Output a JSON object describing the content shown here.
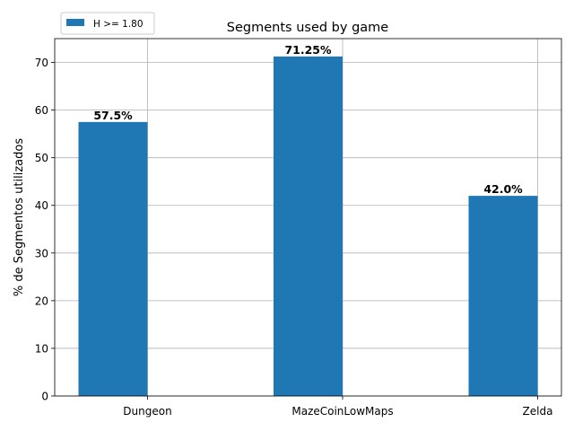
{
  "chart_data": {
    "type": "bar",
    "title": "Segments used by game",
    "xlabel": "",
    "ylabel": "% de Segmentos utilizados",
    "categories": [
      "Dungeon",
      "MazeCoinLowMaps",
      "Zelda"
    ],
    "series": [
      {
        "name": "H >= 1.80",
        "values": [
          57.5,
          71.25,
          42.0
        ],
        "color": "#1f77b4"
      }
    ],
    "data_labels": [
      "57.5%",
      "71.25%",
      "42.0%"
    ],
    "yticks": [
      0,
      10,
      20,
      30,
      40,
      50,
      60,
      70
    ],
    "ylim": [
      0,
      75
    ],
    "grid": true,
    "legend_position": "top-left"
  }
}
